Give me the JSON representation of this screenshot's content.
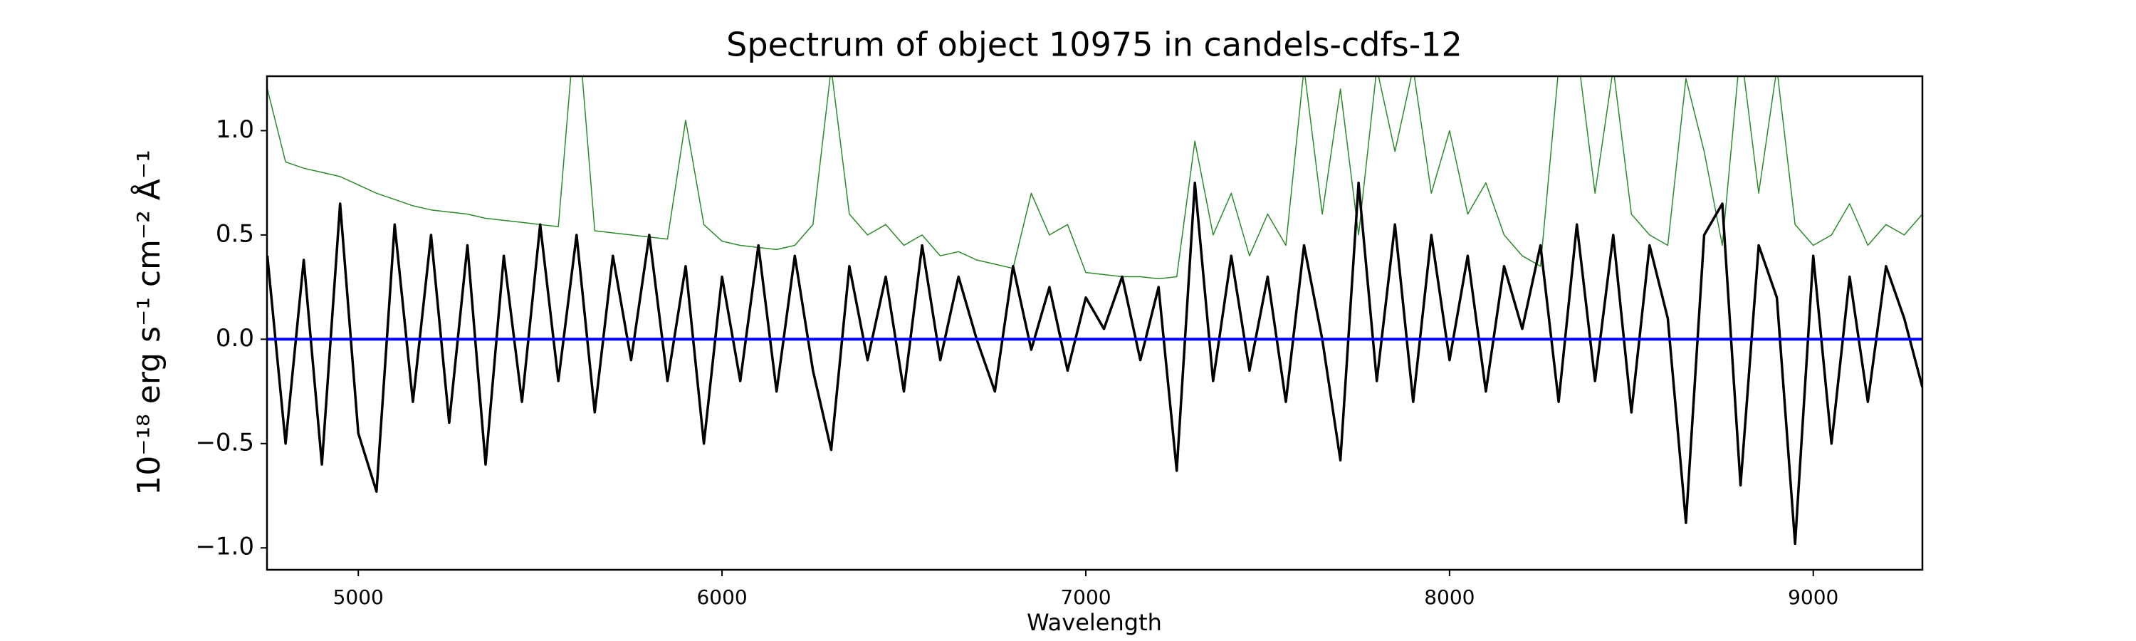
{
  "chart_data": {
    "type": "line",
    "title": "Spectrum of object 10975 in candels-cdfs-12",
    "xlabel": "Wavelength",
    "ylabel": "10⁻¹⁸ erg s⁻¹ cm⁻² Å⁻¹",
    "xlim": [
      4749,
      9300
    ],
    "ylim": [
      -1.105,
      1.261
    ],
    "xticks": [
      5000,
      6000,
      7000,
      8000,
      9000
    ],
    "yticks": [
      {
        "value": -1,
        "label": "−1.0"
      },
      {
        "value": -0.5,
        "label": "−0.5"
      },
      {
        "value": 0,
        "label": "0.0"
      },
      {
        "value": 0.5,
        "label": "0.5"
      },
      {
        "value": 1,
        "label": "1.0"
      }
    ],
    "x": [
      4750,
      4800,
      4850,
      4900,
      4950,
      5000,
      5050,
      5100,
      5150,
      5200,
      5250,
      5300,
      5350,
      5400,
      5450,
      5500,
      5550,
      5600,
      5650,
      5700,
      5750,
      5800,
      5850,
      5900,
      5950,
      6000,
      6050,
      6100,
      6150,
      6200,
      6250,
      6300,
      6350,
      6400,
      6450,
      6500,
      6550,
      6600,
      6650,
      6700,
      6750,
      6800,
      6850,
      6900,
      6950,
      7000,
      7050,
      7100,
      7150,
      7200,
      7250,
      7300,
      7350,
      7400,
      7450,
      7500,
      7550,
      7600,
      7650,
      7700,
      7750,
      7800,
      7850,
      7900,
      7950,
      8000,
      8050,
      8100,
      8150,
      8200,
      8250,
      8300,
      8350,
      8400,
      8450,
      8500,
      8550,
      8600,
      8650,
      8700,
      8750,
      8800,
      8850,
      8900,
      8950,
      9000,
      9050,
      9100,
      9150,
      9200,
      9250,
      9300
    ],
    "series": [
      {
        "color": "#2a8a2a",
        "width": 1.5,
        "values": [
          1.2,
          0.85,
          0.82,
          0.8,
          0.78,
          0.74,
          0.7,
          0.67,
          0.64,
          0.62,
          0.61,
          0.6,
          0.58,
          0.57,
          0.56,
          0.55,
          0.54,
          1.6,
          0.52,
          0.51,
          0.5,
          0.49,
          0.48,
          1.05,
          0.55,
          0.47,
          0.45,
          0.44,
          0.43,
          0.45,
          0.55,
          1.3,
          0.6,
          0.5,
          0.55,
          0.45,
          0.5,
          0.4,
          0.42,
          0.38,
          0.36,
          0.34,
          0.7,
          0.5,
          0.55,
          0.32,
          0.31,
          0.3,
          0.3,
          0.29,
          0.3,
          0.95,
          0.5,
          0.7,
          0.4,
          0.6,
          0.45,
          1.3,
          0.6,
          1.2,
          0.5,
          1.3,
          0.9,
          1.3,
          0.7,
          1.0,
          0.6,
          0.75,
          0.5,
          0.4,
          0.35,
          1.3,
          1.4,
          0.7,
          1.3,
          0.6,
          0.5,
          0.45,
          1.25,
          0.9,
          0.45,
          1.4,
          0.7,
          1.3,
          0.55,
          0.45,
          0.5,
          0.65,
          0.45,
          0.55,
          0.5,
          0.6
        ]
      },
      {
        "color": "#000000",
        "width": 3.5,
        "values": [
          0.4,
          -0.5,
          0.38,
          -0.6,
          0.65,
          -0.45,
          -0.73,
          0.55,
          -0.3,
          0.5,
          -0.4,
          0.45,
          -0.6,
          0.4,
          -0.3,
          0.55,
          -0.2,
          0.5,
          -0.35,
          0.4,
          -0.1,
          0.5,
          -0.2,
          0.35,
          -0.5,
          0.3,
          -0.2,
          0.45,
          -0.25,
          0.4,
          -0.15,
          -0.53,
          0.35,
          -0.1,
          0.3,
          -0.25,
          0.45,
          -0.1,
          0.3,
          0.0,
          -0.25,
          0.35,
          -0.05,
          0.25,
          -0.15,
          0.2,
          0.05,
          0.3,
          -0.1,
          0.25,
          -0.63,
          0.75,
          -0.2,
          0.4,
          -0.15,
          0.3,
          -0.3,
          0.45,
          0.0,
          -0.58,
          0.75,
          -0.2,
          0.55,
          -0.3,
          0.5,
          -0.1,
          0.4,
          -0.25,
          0.35,
          0.05,
          0.45,
          -0.3,
          0.55,
          -0.2,
          0.5,
          -0.35,
          0.45,
          0.1,
          -0.88,
          0.5,
          0.65,
          -0.7,
          0.45,
          0.2,
          -0.98,
          0.4,
          -0.5,
          0.3,
          -0.3,
          0.35,
          0.1,
          -0.23
        ]
      },
      {
        "color": "#0000ff",
        "width": 4,
        "x": [
          4750,
          9300
        ],
        "values": [
          0,
          0
        ]
      }
    ]
  }
}
